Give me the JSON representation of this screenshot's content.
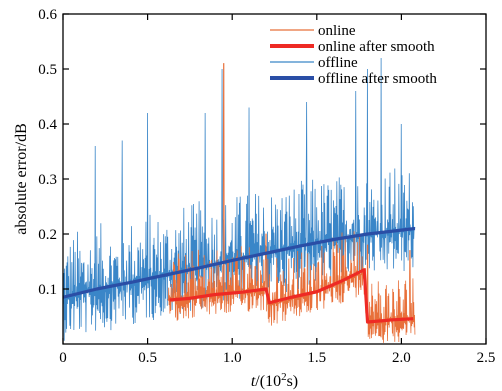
{
  "chart_data": {
    "type": "line",
    "title": "",
    "xlabel": "t/(10²s)",
    "xlabel_parts": {
      "pre": "t",
      "mid": "/(10",
      "sup": "2",
      "post": "s)"
    },
    "ylabel": "absolute error/dB",
    "xlim": [
      0,
      2.5
    ],
    "ylim": [
      0,
      0.6
    ],
    "xticks": [
      0,
      0.5,
      1,
      1.5,
      2,
      2.5
    ],
    "xtick_labels": [
      "0",
      "0.5",
      "1.0",
      "1.5",
      "2.0",
      "2.5"
    ],
    "yticks": [
      0.1,
      0.2,
      0.3,
      0.4,
      0.5,
      0.6
    ],
    "ytick_labels": [
      "0.1",
      "0.2",
      "0.3",
      "0.4",
      "0.5",
      "0.6"
    ],
    "grid": false,
    "legend_position": "top-right",
    "series": [
      {
        "name": "online",
        "color": "#e8703a",
        "style": "noisy",
        "x_range": [
          0.62,
          2.08
        ],
        "baseline": [
          [
            0.62,
            0.08
          ],
          [
            0.9,
            0.09
          ],
          [
            1.2,
            0.1
          ],
          [
            1.22,
            0.07
          ],
          [
            1.5,
            0.095
          ],
          [
            1.78,
            0.13
          ],
          [
            1.8,
            0.04
          ],
          [
            2.08,
            0.045
          ]
        ],
        "spread_low": 0.04,
        "spread_high": 0.09,
        "peaks": [
          [
            0.66,
            0.14
          ],
          [
            0.95,
            0.51
          ],
          [
            1.2,
            0.2
          ],
          [
            1.8,
            0.18
          ],
          [
            2.05,
            0.17
          ]
        ]
      },
      {
        "name": "online after smooth",
        "color": "#ee2a24",
        "style": "smooth",
        "points": [
          [
            0.63,
            0.08
          ],
          [
            0.75,
            0.083
          ],
          [
            0.9,
            0.09
          ],
          [
            1.05,
            0.094
          ],
          [
            1.2,
            0.1
          ],
          [
            1.22,
            0.075
          ],
          [
            1.35,
            0.085
          ],
          [
            1.5,
            0.095
          ],
          [
            1.65,
            0.115
          ],
          [
            1.78,
            0.135
          ],
          [
            1.8,
            0.04
          ],
          [
            1.95,
            0.044
          ],
          [
            2.07,
            0.046
          ]
        ]
      },
      {
        "name": "offline",
        "color": "#3a86c8",
        "style": "noisy",
        "x_range": [
          0.0,
          2.08
        ],
        "baseline": [
          [
            0.0,
            0.085
          ],
          [
            0.5,
            0.12
          ],
          [
            1.0,
            0.155
          ],
          [
            1.5,
            0.185
          ],
          [
            2.08,
            0.21
          ]
        ],
        "spread_low": 0.08,
        "spread_high": 0.12,
        "peaks": [
          [
            0.19,
            0.36
          ],
          [
            0.35,
            0.37
          ],
          [
            0.5,
            0.42
          ],
          [
            0.84,
            0.42
          ],
          [
            0.94,
            0.5
          ],
          [
            1.1,
            0.43
          ],
          [
            1.44,
            0.44
          ],
          [
            1.73,
            0.46
          ],
          [
            1.8,
            0.5
          ],
          [
            1.88,
            0.52
          ],
          [
            2.0,
            0.4
          ]
        ]
      },
      {
        "name": "offline after smooth",
        "color": "#2a4ea6",
        "style": "smooth",
        "points": [
          [
            0.0,
            0.085
          ],
          [
            0.2,
            0.1
          ],
          [
            0.4,
            0.112
          ],
          [
            0.6,
            0.125
          ],
          [
            0.8,
            0.138
          ],
          [
            1.0,
            0.152
          ],
          [
            1.2,
            0.165
          ],
          [
            1.4,
            0.178
          ],
          [
            1.6,
            0.19
          ],
          [
            1.8,
            0.2
          ],
          [
            2.0,
            0.207
          ],
          [
            2.08,
            0.21
          ]
        ]
      }
    ]
  }
}
